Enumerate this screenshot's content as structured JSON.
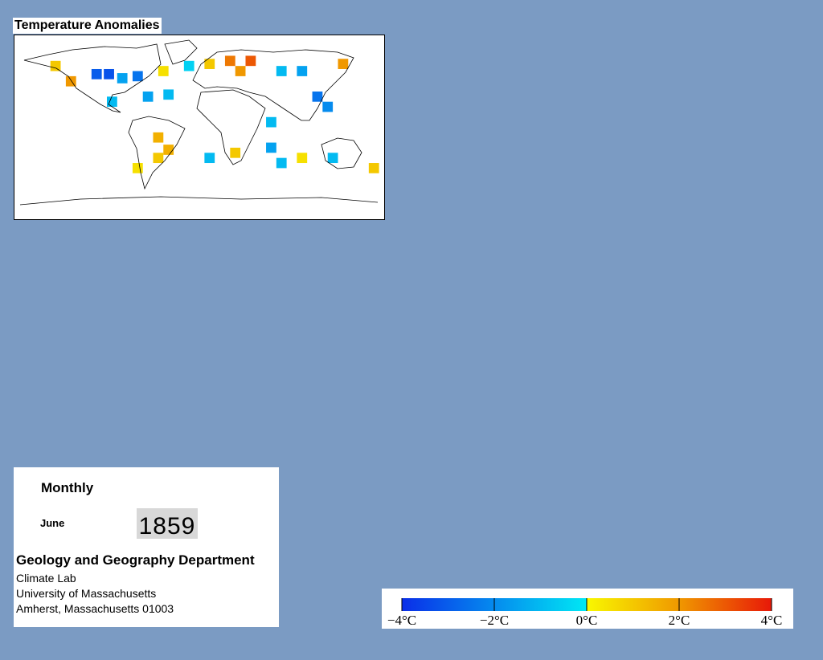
{
  "map": {
    "title": "Temperature Anomalies",
    "cells": [
      {
        "lon": -140,
        "lat": 60,
        "value": 1
      },
      {
        "lon": -125,
        "lat": 45,
        "value": 2
      },
      {
        "lon": -100,
        "lat": 52,
        "value": -3
      },
      {
        "lon": -88,
        "lat": 52,
        "value": -3.2
      },
      {
        "lon": -75,
        "lat": 48,
        "value": -1.5
      },
      {
        "lon": -60,
        "lat": 50,
        "value": -2.5
      },
      {
        "lon": -35,
        "lat": 55,
        "value": 0.5
      },
      {
        "lon": -50,
        "lat": 30,
        "value": -1.5
      },
      {
        "lon": -30,
        "lat": 32,
        "value": -1
      },
      {
        "lon": -85,
        "lat": 25,
        "value": -1
      },
      {
        "lon": -10,
        "lat": 60,
        "value": -0.5
      },
      {
        "lon": 10,
        "lat": 62,
        "value": 1
      },
      {
        "lon": 30,
        "lat": 65,
        "value": 2.5
      },
      {
        "lon": 50,
        "lat": 65,
        "value": 3
      },
      {
        "lon": 40,
        "lat": 55,
        "value": 2
      },
      {
        "lon": 80,
        "lat": 55,
        "value": -1
      },
      {
        "lon": 100,
        "lat": 55,
        "value": -1.5
      },
      {
        "lon": 140,
        "lat": 62,
        "value": 2
      },
      {
        "lon": 115,
        "lat": 30,
        "value": -2.5
      },
      {
        "lon": 125,
        "lat": 20,
        "value": -2
      },
      {
        "lon": 70,
        "lat": 5,
        "value": -1
      },
      {
        "lon": -40,
        "lat": -10,
        "value": 1.5
      },
      {
        "lon": -40,
        "lat": -30,
        "value": 1
      },
      {
        "lon": -30,
        "lat": -22,
        "value": 1.5
      },
      {
        "lon": -60,
        "lat": -40,
        "value": 0.5
      },
      {
        "lon": 10,
        "lat": -30,
        "value": -1
      },
      {
        "lon": 35,
        "lat": -25,
        "value": 1
      },
      {
        "lon": 70,
        "lat": -20,
        "value": -1.5
      },
      {
        "lon": 80,
        "lat": -35,
        "value": -1
      },
      {
        "lon": 100,
        "lat": -30,
        "value": 0.5
      },
      {
        "lon": 130,
        "lat": -30,
        "value": -1
      },
      {
        "lon": 170,
        "lat": -40,
        "value": 1
      }
    ]
  },
  "info": {
    "period": "Monthly",
    "month": "June",
    "year": "1859",
    "department": "Geology and Geography Department",
    "lab": "Climate Lab",
    "university": "University of Massachusetts",
    "address": "Amherst, Massachusetts 01003"
  },
  "colorbar": {
    "ticks": [
      {
        "value": -4,
        "label": "−4°C"
      },
      {
        "value": -2,
        "label": "−2°C"
      },
      {
        "value": 0,
        "label": "0°C"
      },
      {
        "value": 2,
        "label": "2°C"
      },
      {
        "value": 4,
        "label": "4°C"
      }
    ],
    "stops": [
      {
        "value": -4,
        "color": "#0a2ee8"
      },
      {
        "value": 0,
        "color": "#00e8f4"
      },
      {
        "value": 0,
        "color": "#f8f800"
      },
      {
        "value": 2,
        "color": "#f09800"
      },
      {
        "value": 4,
        "color": "#e81808"
      }
    ]
  }
}
